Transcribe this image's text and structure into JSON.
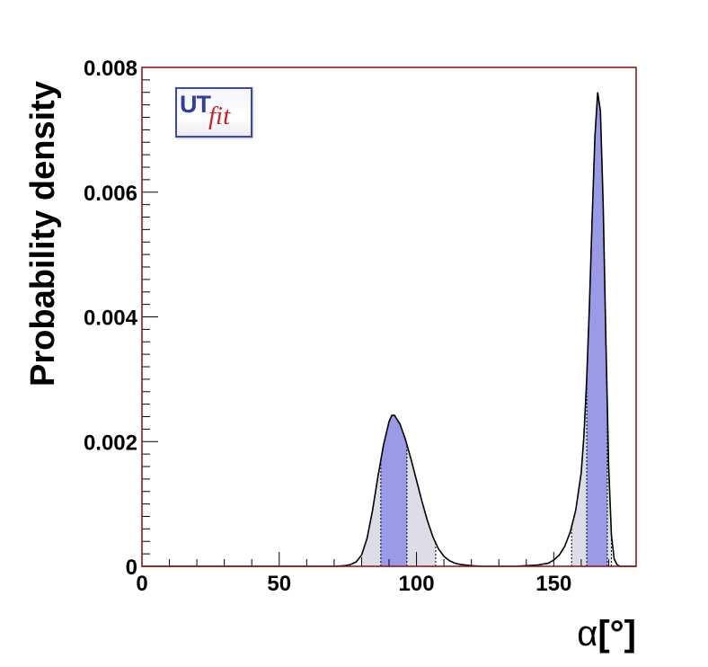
{
  "chart_data": {
    "type": "area",
    "title": "",
    "xlabel": "α[°]",
    "ylabel": "Probability density",
    "xlim": [
      0,
      180
    ],
    "ylim": [
      0,
      0.008
    ],
    "x_ticks": [
      "0",
      "50",
      "100",
      "150"
    ],
    "y_ticks": [
      "0",
      "0.002",
      "0.004",
      "0.006",
      "0.008"
    ],
    "grid": false,
    "legend": "none",
    "logo_text": {
      "part1": "UT",
      "part2": "fit"
    },
    "colors": {
      "curve": "#000000",
      "frame": "#8b1a1a",
      "region_68": "#9a9ae6",
      "region_95": "#dcdde6",
      "logo_blue": "#2f3fa0",
      "logo_red": "#d0202a"
    },
    "series": [
      {
        "x": [
          70,
          74,
          76,
          78,
          80,
          82,
          84,
          86,
          88,
          90,
          91,
          92,
          94,
          96,
          98,
          100,
          102,
          104,
          106,
          108,
          110,
          112,
          114,
          116,
          118,
          120,
          124,
          128,
          132,
          136,
          140,
          144,
          148,
          150,
          152,
          154,
          156,
          158,
          160,
          161,
          162,
          163,
          164,
          165,
          166,
          167,
          168,
          169,
          170,
          171,
          172,
          173,
          174,
          176,
          180
        ],
        "y": [
          0.0,
          1e-05,
          3e-05,
          7e-05,
          0.00018,
          0.00045,
          0.0009,
          0.00145,
          0.00195,
          0.00232,
          0.00242,
          0.00242,
          0.00228,
          0.00203,
          0.00172,
          0.00138,
          0.00104,
          0.00073,
          0.00047,
          0.00028,
          0.00016,
          9e-05,
          5e-05,
          3e-05,
          2e-05,
          1e-05,
          0.0,
          0.0,
          0.0,
          0.0,
          1e-05,
          2e-05,
          5e-05,
          0.0001,
          0.00018,
          0.00032,
          0.00055,
          0.0009,
          0.0015,
          0.0021,
          0.003,
          0.0042,
          0.0056,
          0.0069,
          0.0076,
          0.0073,
          0.0058,
          0.0036,
          0.0016,
          0.0005,
          0.00012,
          3e-05,
          0.0,
          0.0,
          0.0
        ]
      }
    ],
    "regions_68": [
      [
        87,
        96.5
      ],
      [
        162,
        169.5
      ]
    ],
    "regions_95": [
      [
        80,
        107
      ],
      [
        156.5,
        171
      ]
    ]
  }
}
